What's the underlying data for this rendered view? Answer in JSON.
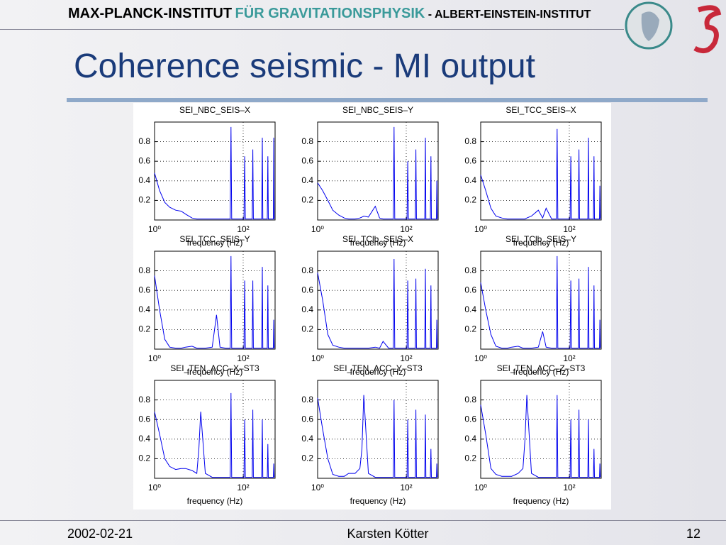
{
  "header": {
    "institute": "MAX-PLANCK-INSTITUT",
    "department": "FÜR GRAVITATIONSPHYSIK",
    "subtitle": "- ALBERT-EINSTEIN-INSTITUT"
  },
  "title": "Coherence seismic -  MI output",
  "footer": {
    "date": "2002-02-21",
    "author": "Karsten Kötter",
    "page": 12
  },
  "chart_data": [
    {
      "type": "line",
      "title": "SEI_NBC_SEIS–X",
      "x_label": "frequency (Hz)",
      "x": [
        1,
        1.3,
        1.7,
        2.2,
        3,
        4,
        5,
        7,
        9,
        10,
        11,
        14,
        20,
        25,
        30,
        40,
        51,
        53,
        55,
        104,
        108,
        112,
        160,
        165,
        170,
        262,
        270,
        278,
        350,
        360,
        370,
        480,
        490,
        500
      ],
      "series": [
        {
          "color": "#0000ee",
          "values": [
            0.48,
            0.3,
            0.18,
            0.13,
            0.1,
            0.09,
            0.06,
            0.02,
            0.01,
            0.01,
            0.01,
            0.01,
            0.01,
            0.01,
            0.01,
            0.01,
            0.01,
            0.95,
            0.01,
            0.01,
            0.65,
            0.01,
            0.01,
            0.72,
            0.01,
            0.01,
            0.84,
            0.01,
            0.01,
            0.65,
            0.01,
            0.01,
            0.84,
            0.01
          ]
        }
      ],
      "xlim": [
        1,
        525
      ],
      "ylim": [
        0,
        1
      ],
      "xticks": [
        {
          "value": 1,
          "label": "10⁰"
        },
        {
          "value": 100,
          "label": "10²"
        }
      ],
      "yticks": [
        0.2,
        0.4,
        0.6,
        0.8
      ],
      "log_x": true,
      "grid": true
    },
    {
      "type": "line",
      "title": "SEI_NBC_SEIS–Y",
      "x_label": "frequency (Hz)",
      "x": [
        1,
        1.3,
        1.7,
        2.2,
        3,
        4,
        5,
        7,
        9,
        10,
        11,
        14,
        20,
        25,
        30,
        40,
        51,
        53,
        55,
        104,
        108,
        112,
        160,
        165,
        170,
        262,
        270,
        278,
        350,
        360,
        370,
        480,
        490,
        500
      ],
      "series": [
        {
          "color": "#0000ee",
          "values": [
            0.38,
            0.3,
            0.2,
            0.1,
            0.05,
            0.02,
            0.01,
            0.01,
            0.02,
            0.03,
            0.04,
            0.03,
            0.14,
            0.02,
            0.01,
            0.01,
            0.01,
            0.95,
            0.01,
            0.01,
            0.6,
            0.01,
            0.01,
            0.72,
            0.01,
            0.01,
            0.84,
            0.01,
            0.01,
            0.65,
            0.01,
            0.01,
            0.4,
            0.01
          ]
        }
      ],
      "xlim": [
        1,
        525
      ],
      "ylim": [
        0,
        1
      ],
      "xticks": [
        {
          "value": 1,
          "label": "10⁰"
        },
        {
          "value": 100,
          "label": "10²"
        }
      ],
      "yticks": [
        0.2,
        0.4,
        0.6,
        0.8
      ],
      "log_x": true,
      "grid": true
    },
    {
      "type": "line",
      "title": "SEI_TCC_SEIS–X",
      "x_label": "frequency (Hz)",
      "x": [
        1,
        1.3,
        1.7,
        2.2,
        3,
        4,
        5,
        7,
        9,
        10,
        11,
        14,
        20,
        25,
        30,
        40,
        51,
        53,
        55,
        104,
        108,
        112,
        160,
        165,
        170,
        262,
        270,
        278,
        350,
        360,
        370,
        480,
        490,
        500
      ],
      "series": [
        {
          "color": "#0000ee",
          "values": [
            0.46,
            0.3,
            0.12,
            0.04,
            0.02,
            0.01,
            0.01,
            0.01,
            0.01,
            0.01,
            0.02,
            0.04,
            0.1,
            0.02,
            0.12,
            0.01,
            0.01,
            0.93,
            0.01,
            0.01,
            0.65,
            0.01,
            0.01,
            0.72,
            0.01,
            0.01,
            0.84,
            0.01,
            0.01,
            0.65,
            0.01,
            0.01,
            0.35,
            0.01
          ]
        }
      ],
      "xlim": [
        1,
        525
      ],
      "ylim": [
        0,
        1
      ],
      "xticks": [
        {
          "value": 1,
          "label": "10⁰"
        },
        {
          "value": 100,
          "label": "10²"
        }
      ],
      "yticks": [
        0.2,
        0.4,
        0.6,
        0.8
      ],
      "log_x": true,
      "grid": true
    },
    {
      "type": "line",
      "title": "SEI_TCC_SEIS–Y",
      "x_label": "frequency (Hz)",
      "x": [
        1,
        1.3,
        1.7,
        2.2,
        3,
        4,
        5,
        7,
        9,
        10,
        11,
        14,
        20,
        25,
        30,
        40,
        51,
        53,
        55,
        104,
        108,
        112,
        160,
        165,
        170,
        262,
        270,
        278,
        350,
        360,
        370,
        480,
        490,
        500
      ],
      "series": [
        {
          "color": "#0000ee",
          "values": [
            0.75,
            0.4,
            0.1,
            0.02,
            0.01,
            0.01,
            0.02,
            0.03,
            0.01,
            0.01,
            0.01,
            0.01,
            0.02,
            0.35,
            0.02,
            0.01,
            0.01,
            0.95,
            0.01,
            0.01,
            0.7,
            0.01,
            0.01,
            0.7,
            0.01,
            0.01,
            0.84,
            0.01,
            0.01,
            0.65,
            0.01,
            0.01,
            0.3,
            0.01
          ]
        }
      ],
      "xlim": [
        1,
        525
      ],
      "ylim": [
        0,
        1
      ],
      "xticks": [
        {
          "value": 1,
          "label": "10⁰"
        },
        {
          "value": 100,
          "label": "10²"
        }
      ],
      "yticks": [
        0.2,
        0.4,
        0.6,
        0.8
      ],
      "log_x": true,
      "grid": true
    },
    {
      "type": "line",
      "title": "SEI_TClb_SEIS–X",
      "x_label": "frequency (Hz)",
      "x": [
        1,
        1.3,
        1.7,
        2.2,
        3,
        4,
        5,
        7,
        9,
        10,
        11,
        14,
        20,
        25,
        30,
        40,
        51,
        53,
        55,
        104,
        108,
        112,
        160,
        165,
        170,
        262,
        270,
        278,
        350,
        360,
        370,
        480,
        490,
        500
      ],
      "series": [
        {
          "color": "#0000ee",
          "values": [
            0.78,
            0.5,
            0.15,
            0.04,
            0.02,
            0.01,
            0.01,
            0.01,
            0.01,
            0.01,
            0.01,
            0.01,
            0.02,
            0.01,
            0.08,
            0.01,
            0.01,
            0.92,
            0.01,
            0.01,
            0.7,
            0.01,
            0.01,
            0.72,
            0.01,
            0.01,
            0.82,
            0.01,
            0.01,
            0.65,
            0.01,
            0.01,
            0.3,
            0.01
          ]
        }
      ],
      "xlim": [
        1,
        525
      ],
      "ylim": [
        0,
        1
      ],
      "xticks": [
        {
          "value": 1,
          "label": "10⁰"
        },
        {
          "value": 100,
          "label": "10²"
        }
      ],
      "yticks": [
        0.2,
        0.4,
        0.6,
        0.8
      ],
      "log_x": true,
      "grid": true
    },
    {
      "type": "line",
      "title": "SEI_TClb_SEIS–Y",
      "x_label": "frequency (Hz)",
      "x": [
        1,
        1.3,
        1.7,
        2.2,
        3,
        4,
        5,
        7,
        9,
        10,
        11,
        14,
        20,
        25,
        30,
        40,
        51,
        53,
        55,
        104,
        108,
        112,
        160,
        165,
        170,
        262,
        270,
        278,
        350,
        360,
        370,
        480,
        490,
        500
      ],
      "series": [
        {
          "color": "#0000ee",
          "values": [
            0.68,
            0.4,
            0.15,
            0.03,
            0.01,
            0.01,
            0.02,
            0.03,
            0.01,
            0.01,
            0.01,
            0.01,
            0.02,
            0.18,
            0.02,
            0.01,
            0.01,
            0.95,
            0.01,
            0.01,
            0.7,
            0.01,
            0.01,
            0.72,
            0.01,
            0.01,
            0.84,
            0.01,
            0.01,
            0.65,
            0.01,
            0.01,
            0.3,
            0.01
          ]
        }
      ],
      "xlim": [
        1,
        525
      ],
      "ylim": [
        0,
        1
      ],
      "xticks": [
        {
          "value": 1,
          "label": "10⁰"
        },
        {
          "value": 100,
          "label": "10²"
        }
      ],
      "yticks": [
        0.2,
        0.4,
        0.6,
        0.8
      ],
      "log_x": true,
      "grid": true
    },
    {
      "type": "line",
      "title": "SEI_TEN_ACC–X–ST3",
      "x_label": "frequency (Hz)",
      "x": [
        1,
        1.3,
        1.7,
        2.2,
        3,
        4,
        5,
        7,
        9,
        10,
        11,
        14,
        20,
        25,
        30,
        40,
        51,
        53,
        55,
        104,
        108,
        112,
        160,
        165,
        170,
        262,
        270,
        278,
        350,
        360,
        370,
        480,
        490,
        500
      ],
      "series": [
        {
          "color": "#0000ee",
          "values": [
            0.68,
            0.45,
            0.2,
            0.12,
            0.09,
            0.1,
            0.1,
            0.08,
            0.05,
            0.3,
            0.68,
            0.05,
            0.01,
            0.01,
            0.01,
            0.01,
            0.01,
            0.87,
            0.01,
            0.01,
            0.6,
            0.01,
            0.01,
            0.7,
            0.01,
            0.01,
            0.6,
            0.01,
            0.01,
            0.35,
            0.01,
            0.01,
            0.15,
            0.01
          ]
        }
      ],
      "xlim": [
        1,
        525
      ],
      "ylim": [
        0,
        1
      ],
      "xticks": [
        {
          "value": 1,
          "label": "10⁰"
        },
        {
          "value": 100,
          "label": "10²"
        }
      ],
      "yticks": [
        0.2,
        0.4,
        0.6,
        0.8
      ],
      "log_x": true,
      "grid": true
    },
    {
      "type": "line",
      "title": "SEI_TEN_ACC–Y–ST3",
      "x_label": "frequency (Hz)",
      "x": [
        1,
        1.3,
        1.7,
        2.2,
        3,
        4,
        5,
        7,
        9,
        10,
        11,
        14,
        20,
        25,
        30,
        40,
        51,
        53,
        55,
        104,
        108,
        112,
        160,
        165,
        170,
        262,
        270,
        278,
        350,
        360,
        370,
        480,
        490,
        500
      ],
      "series": [
        {
          "color": "#0000ee",
          "values": [
            0.82,
            0.5,
            0.2,
            0.04,
            0.02,
            0.02,
            0.05,
            0.05,
            0.1,
            0.3,
            0.85,
            0.05,
            0.01,
            0.01,
            0.01,
            0.01,
            0.01,
            0.8,
            0.01,
            0.01,
            0.6,
            0.01,
            0.01,
            0.7,
            0.01,
            0.01,
            0.65,
            0.01,
            0.01,
            0.3,
            0.01,
            0.01,
            0.15,
            0.01
          ]
        }
      ],
      "xlim": [
        1,
        525
      ],
      "ylim": [
        0,
        1
      ],
      "xticks": [
        {
          "value": 1,
          "label": "10⁰"
        },
        {
          "value": 100,
          "label": "10²"
        }
      ],
      "yticks": [
        0.2,
        0.4,
        0.6,
        0.8
      ],
      "log_x": true,
      "grid": true
    },
    {
      "type": "line",
      "title": "SEI_TEN_ACC–Z–ST3",
      "x_label": "frequency (Hz)",
      "x": [
        1,
        1.3,
        1.7,
        2.2,
        3,
        4,
        5,
        7,
        9,
        10,
        11,
        14,
        20,
        25,
        30,
        40,
        51,
        53,
        55,
        104,
        108,
        112,
        160,
        165,
        170,
        262,
        270,
        278,
        350,
        360,
        370,
        480,
        490,
        500
      ],
      "series": [
        {
          "color": "#0000ee",
          "values": [
            0.75,
            0.45,
            0.1,
            0.04,
            0.02,
            0.02,
            0.02,
            0.05,
            0.1,
            0.4,
            0.85,
            0.05,
            0.01,
            0.01,
            0.01,
            0.01,
            0.01,
            0.85,
            0.01,
            0.01,
            0.6,
            0.01,
            0.01,
            0.7,
            0.01,
            0.01,
            0.6,
            0.01,
            0.01,
            0.3,
            0.01,
            0.01,
            0.15,
            0.01
          ]
        }
      ],
      "xlim": [
        1,
        525
      ],
      "ylim": [
        0,
        1
      ],
      "xticks": [
        {
          "value": 1,
          "label": "10⁰"
        },
        {
          "value": 100,
          "label": "10²"
        }
      ],
      "yticks": [
        0.2,
        0.4,
        0.6,
        0.8
      ],
      "log_x": true,
      "grid": true
    }
  ]
}
